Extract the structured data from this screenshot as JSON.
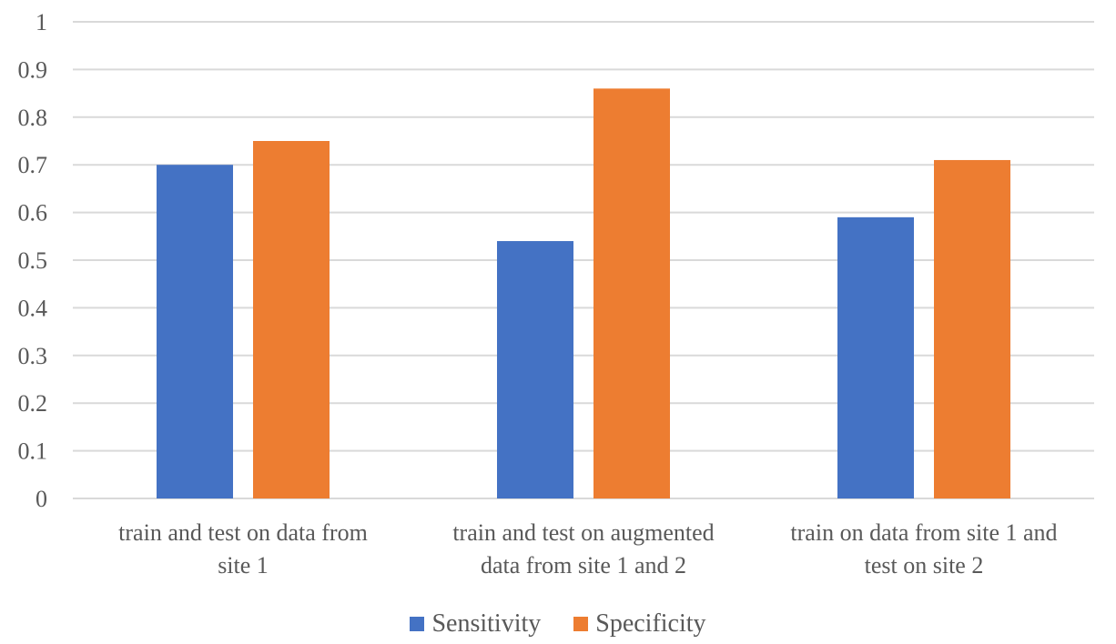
{
  "chart_data": {
    "type": "bar",
    "title": "",
    "xlabel": "",
    "ylabel": "",
    "ylim": [
      0,
      1
    ],
    "yticks": [
      "0",
      "0.1",
      "0.2",
      "0.3",
      "0.4",
      "0.5",
      "0.6",
      "0.7",
      "0.8",
      "0.9",
      "1"
    ],
    "categories": [
      [
        "train and test on data from",
        "site 1"
      ],
      [
        "train and test on augmented",
        "data from site 1 and 2"
      ],
      [
        "train on data from site 1 and",
        "test on  site 2"
      ]
    ],
    "series": [
      {
        "name": "Sensitivity",
        "color": "#4472C4",
        "values": [
          0.7,
          0.54,
          0.59
        ]
      },
      {
        "name": "Specificity",
        "color": "#ED7D31",
        "values": [
          0.75,
          0.86,
          0.71
        ]
      }
    ],
    "grid": true,
    "legend": "bottom"
  }
}
